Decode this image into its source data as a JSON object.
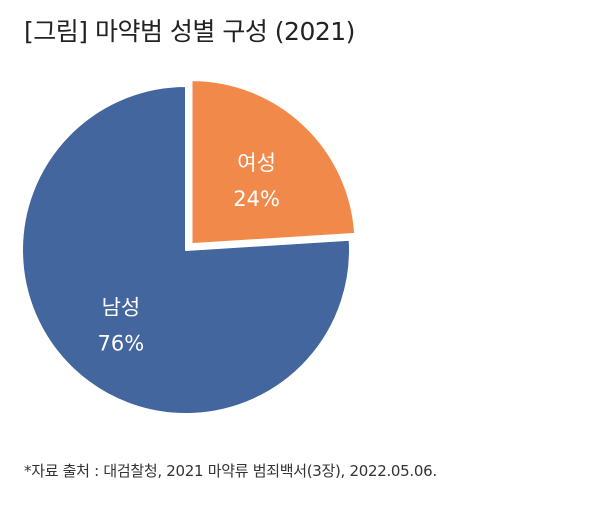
{
  "title": "[그림] 마약범 성별 구성 (2021)",
  "source": "*자료 출처 : 대검찰청, 2021 마약류 범죄백서(3장), 2022.05.06.",
  "chart_data": {
    "type": "pie",
    "title": "[그림] 마약범 성별 구성 (2021)",
    "exploded": "여성",
    "slices": [
      {
        "label": "여성",
        "value": 24,
        "value_label": "24%",
        "color": "#F0894A"
      },
      {
        "label": "남성",
        "value": 76,
        "value_label": "76%",
        "color": "#43669E"
      }
    ]
  }
}
